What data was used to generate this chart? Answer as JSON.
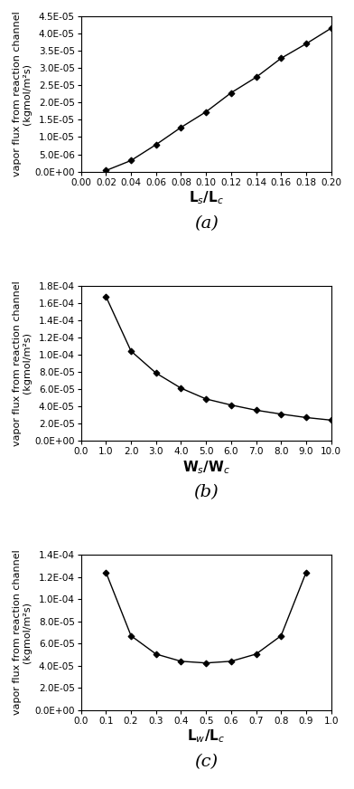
{
  "plot_a": {
    "x": [
      0.02,
      0.04,
      0.06,
      0.08,
      0.1,
      0.12,
      0.14,
      0.16,
      0.18,
      0.2
    ],
    "y": [
      3e-07,
      3.2e-06,
      7.8e-06,
      1.28e-05,
      1.73e-05,
      2.28e-05,
      2.73e-05,
      3.28e-05,
      3.7e-05,
      4.15e-05
    ],
    "xlabel": "L$_s$/L$_c$",
    "ylabel": "vapor flux from reaction channel\n(kgmol/m²s)",
    "xlim": [
      0.0,
      0.2
    ],
    "ylim": [
      0.0,
      4.5e-05
    ],
    "xticks": [
      0.0,
      0.02,
      0.04,
      0.06,
      0.08,
      0.1,
      0.12,
      0.14,
      0.16,
      0.18,
      0.2
    ],
    "xtick_labels": [
      "0.00",
      "0.02",
      "0.04",
      "0.06",
      "0.08",
      "0.10",
      "0.12",
      "0.14",
      "0.16",
      "0.18",
      "0.20"
    ],
    "yticks": [
      0.0,
      5e-06,
      1e-05,
      1.5e-05,
      2e-05,
      2.5e-05,
      3e-05,
      3.5e-05,
      4e-05,
      4.5e-05
    ],
    "ytick_labels": [
      "0.0E+00",
      "5.0E-06",
      "1.0E-05",
      "1.5E-05",
      "2.0E-05",
      "2.5E-05",
      "3.0E-05",
      "3.5E-05",
      "4.0E-05",
      "4.5E-05"
    ],
    "label": "(a)"
  },
  "plot_b": {
    "x": [
      1.0,
      2.0,
      3.0,
      4.0,
      5.0,
      6.0,
      7.0,
      8.0,
      9.0,
      10.0
    ],
    "y": [
      0.000167,
      0.000104,
      7.85e-05,
      6.1e-05,
      4.85e-05,
      4.15e-05,
      3.55e-05,
      3.1e-05,
      2.7e-05,
      2.4e-05
    ],
    "xlabel": "W$_s$/W$_c$",
    "ylabel": "vapor flux from reaction channel\n(kgmol/m²s)",
    "xlim": [
      0.0,
      10.0
    ],
    "ylim": [
      0.0,
      0.00018
    ],
    "xticks": [
      0.0,
      1.0,
      2.0,
      3.0,
      4.0,
      5.0,
      6.0,
      7.0,
      8.0,
      9.0,
      10.0
    ],
    "xtick_labels": [
      "0.0",
      "1.0",
      "2.0",
      "3.0",
      "4.0",
      "5.0",
      "6.0",
      "7.0",
      "8.0",
      "9.0",
      "10.0"
    ],
    "yticks": [
      0.0,
      2e-05,
      4e-05,
      6e-05,
      8e-05,
      0.0001,
      0.00012,
      0.00014,
      0.00016,
      0.00018
    ],
    "ytick_labels": [
      "0.0E+00",
      "2.0E-05",
      "4.0E-05",
      "6.0E-05",
      "8.0E-05",
      "1.0E-04",
      "1.2E-04",
      "1.4E-04",
      "1.6E-04",
      "1.8E-04"
    ],
    "label": "(b)"
  },
  "plot_c": {
    "x": [
      0.1,
      0.2,
      0.3,
      0.4,
      0.5,
      0.6,
      0.7,
      0.8,
      0.9
    ],
    "y": [
      0.000124,
      6.7e-05,
      5.05e-05,
      4.4e-05,
      4.25e-05,
      4.4e-05,
      5.05e-05,
      6.7e-05,
      0.000124
    ],
    "xlabel": "L$_w$/L$_c$",
    "ylabel": "vapor flux from reaction channel\n(kgmol/m²s)",
    "xlim": [
      0.0,
      1.0
    ],
    "ylim": [
      0.0,
      0.00014
    ],
    "xticks": [
      0.0,
      0.1,
      0.2,
      0.3,
      0.4,
      0.5,
      0.6,
      0.7,
      0.8,
      0.9,
      1.0
    ],
    "xtick_labels": [
      "0.0",
      "0.1",
      "0.2",
      "0.3",
      "0.4",
      "0.5",
      "0.6",
      "0.7",
      "0.8",
      "0.9",
      "1.0"
    ],
    "yticks": [
      0.0,
      2e-05,
      4e-05,
      6e-05,
      8e-05,
      0.0001,
      0.00012,
      0.00014
    ],
    "ytick_labels": [
      "0.0E+00",
      "2.0E-05",
      "4.0E-05",
      "6.0E-05",
      "8.0E-05",
      "1.0E-04",
      "1.2E-04",
      "1.4E-04"
    ],
    "label": "(c)"
  },
  "line_color": "#000000",
  "marker": "D",
  "marker_size": 3.5,
  "marker_facecolor": "#000000",
  "background_color": "#ffffff",
  "tick_fontsize": 7.5,
  "xlabel_fontsize": 11,
  "ylabel_fontsize": 8,
  "panel_label_fontsize": 14
}
